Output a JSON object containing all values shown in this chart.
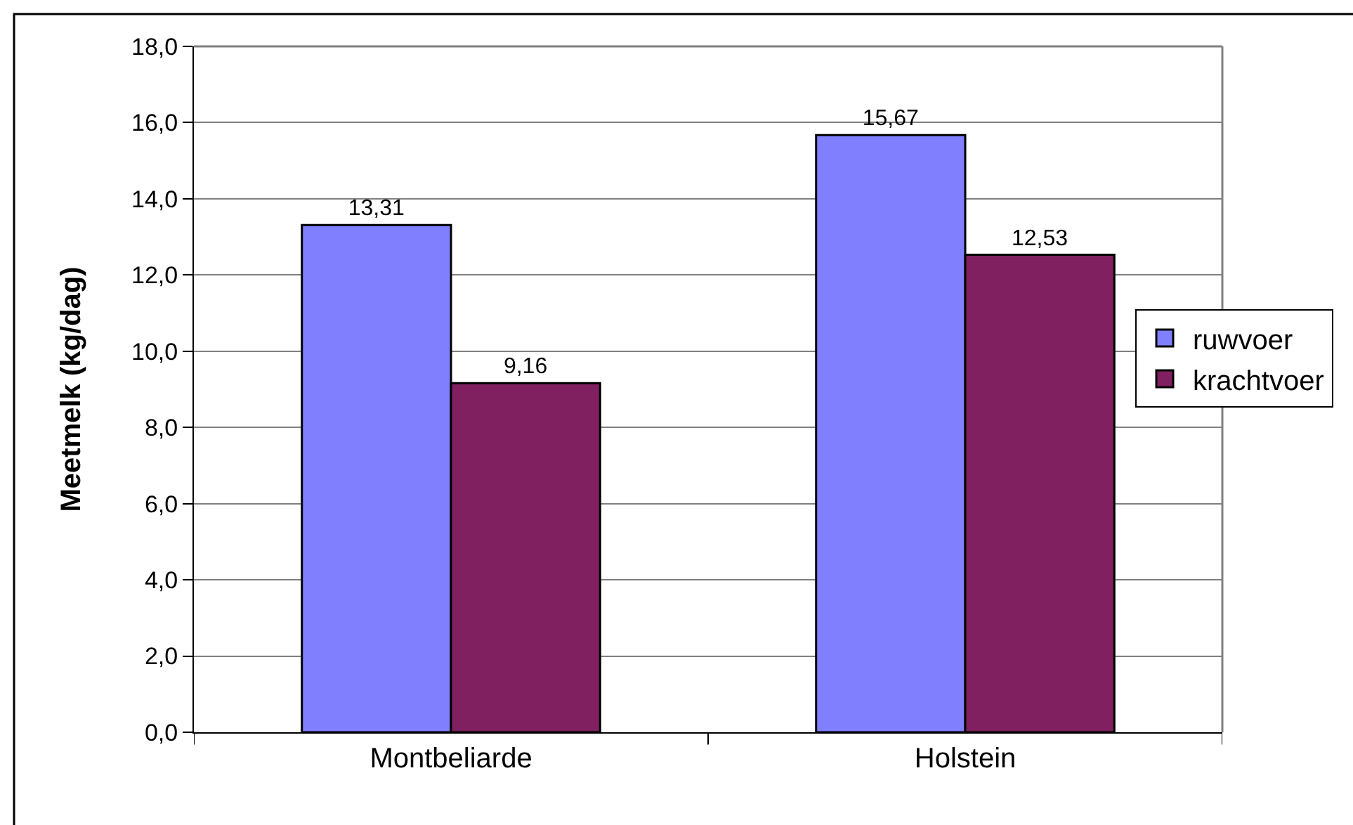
{
  "chart_data": {
    "type": "bar",
    "ylabel": "Meetmelk (kg/dag)",
    "categories": [
      "Montbeliarde",
      "Holstein"
    ],
    "series": [
      {
        "name": "ruwvoer",
        "color": "#8080ff",
        "values": [
          13.31,
          15.67
        ],
        "value_labels": [
          "13,31",
          "15,67"
        ]
      },
      {
        "name": "krachtvoer",
        "color": "#802060",
        "values": [
          9.16,
          12.53
        ],
        "value_labels": [
          "9,16",
          "12,53"
        ]
      }
    ],
    "ylim": [
      0,
      18
    ],
    "yticks": [
      {
        "value": 0,
        "label": "0,0"
      },
      {
        "value": 2,
        "label": "2,0"
      },
      {
        "value": 4,
        "label": "4,0"
      },
      {
        "value": 6,
        "label": "6,0"
      },
      {
        "value": 8,
        "label": "8,0"
      },
      {
        "value": 10,
        "label": "10,0"
      },
      {
        "value": 12,
        "label": "12,0"
      },
      {
        "value": 14,
        "label": "14,0"
      },
      {
        "value": 16,
        "label": "16,0"
      },
      {
        "value": 18,
        "label": "18,0"
      }
    ],
    "grid": "y",
    "legend": "right"
  }
}
